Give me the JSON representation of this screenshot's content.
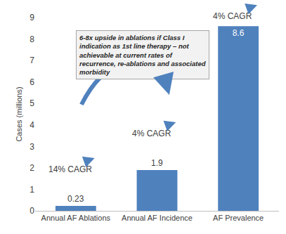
{
  "chart_data": {
    "type": "bar",
    "categories": [
      "Annual AF Ablations",
      "Annual AF Incidence",
      "AF Prevalence"
    ],
    "values": [
      0.23,
      1.9,
      8.6
    ],
    "color": "#4f81bd",
    "ylabel": "Cases (millions)",
    "ylim": [
      0,
      9
    ],
    "yticks": [
      0,
      1,
      2,
      3,
      4,
      5,
      6,
      7,
      8,
      9
    ],
    "grid": false,
    "data_labels": true,
    "annotations": [
      {
        "text": "14% CAGR",
        "category": "Annual AF Ablations"
      },
      {
        "text": "4% CAGR",
        "category": "Annual AF Incidence"
      },
      {
        "text": "4% CAGR",
        "category": "AF Prevalence"
      }
    ],
    "callout": [
      "6-8x upside in ablations if Class I",
      "indication as 1st line therapy – not",
      "achievable at current rates of",
      "recurrence, re-ablations and associated",
      "morbidity"
    ]
  }
}
